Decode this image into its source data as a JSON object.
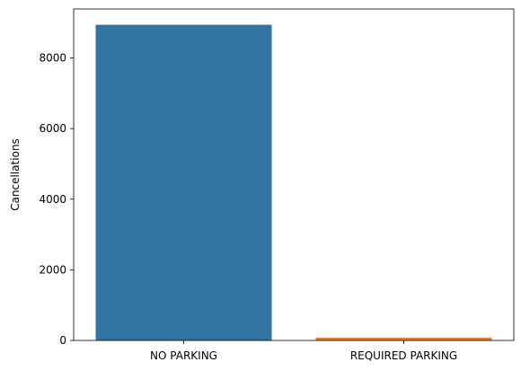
{
  "chart_data": {
    "type": "bar",
    "categories": [
      "NO PARKING",
      "REQUIRED PARKING"
    ],
    "values": [
      8940,
      80
    ],
    "ylabel": "Cancellations",
    "xlabel": "",
    "ylim": [
      0,
      9387
    ],
    "yticks": [
      0,
      2000,
      4000,
      6000,
      8000
    ],
    "colors": [
      "#3274a1",
      "#e1812c"
    ],
    "grid": false
  }
}
